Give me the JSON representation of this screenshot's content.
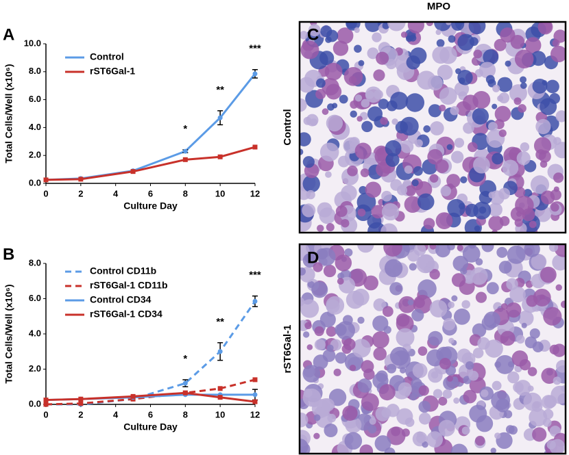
{
  "labels": {
    "column_title": "MPO",
    "row_top": "Control",
    "row_bottom": "rST6Gal-1",
    "panel_c": "C",
    "panel_d": "D"
  },
  "chart_data": [
    {
      "type": "line",
      "panel": "A",
      "xlabel": "Culture Day",
      "ylabel": "Total Cells/Well (x10⁶)",
      "x": [
        0,
        2,
        5,
        8,
        10,
        12
      ],
      "xlim": [
        0,
        12
      ],
      "xticks": [
        0,
        2,
        4,
        6,
        8,
        10,
        12
      ],
      "ylim": [
        0,
        10
      ],
      "yticks": [
        {
          "value": 0,
          "label": "0.0"
        },
        {
          "value": 2,
          "label": "2.0"
        },
        {
          "value": 4,
          "label": "4.0"
        },
        {
          "value": 6,
          "label": "6.0"
        },
        {
          "value": 8,
          "label": "8.0"
        },
        {
          "value": 10,
          "label": "10.0"
        }
      ],
      "series": [
        {
          "name": "Control",
          "color": "#5b9be6",
          "dash": false,
          "marker": "circle",
          "values": [
            0.25,
            0.35,
            0.9,
            2.3,
            4.7,
            7.85
          ],
          "errors": [
            null,
            null,
            null,
            0.1,
            0.5,
            0.3
          ]
        },
        {
          "name": "rST6Gal-1",
          "color": "#c8312a",
          "dash": false,
          "marker": "square",
          "values": [
            0.25,
            0.3,
            0.85,
            1.7,
            1.9,
            2.6
          ],
          "errors": [
            null,
            null,
            null,
            null,
            null,
            null
          ]
        }
      ],
      "annotations": [
        {
          "text": "*",
          "x": 8
        },
        {
          "text": "**",
          "x": 10
        },
        {
          "text": "***",
          "x": 12
        }
      ]
    },
    {
      "type": "line",
      "panel": "B",
      "xlabel": "Culture Day",
      "ylabel": "Total Cells/Well (x10⁶)",
      "x": [
        0,
        2,
        5,
        8,
        10,
        12
      ],
      "xlim": [
        0,
        12
      ],
      "xticks": [
        0,
        2,
        4,
        6,
        8,
        10,
        12
      ],
      "ylim": [
        0,
        8
      ],
      "yticks": [
        {
          "value": 0,
          "label": "0.0"
        },
        {
          "value": 2,
          "label": "2.0"
        },
        {
          "value": 4,
          "label": "4.0"
        },
        {
          "value": 6,
          "label": "6.0"
        },
        {
          "value": 8,
          "label": "8.0"
        }
      ],
      "series": [
        {
          "name": "Control CD11b",
          "color": "#5b9be6",
          "dash": true,
          "marker": "circle",
          "values": [
            0,
            0,
            0.3,
            1.2,
            3.0,
            5.85
          ],
          "errors": [
            null,
            null,
            null,
            0.2,
            0.5,
            0.3
          ]
        },
        {
          "name": "rST6Gal-1 CD11b",
          "color": "#c8312a",
          "dash": true,
          "marker": "square",
          "values": [
            0,
            0.05,
            0.3,
            0.65,
            0.9,
            1.4
          ],
          "errors": [
            null,
            null,
            null,
            null,
            null,
            null
          ]
        },
        {
          "name": "Control CD34",
          "color": "#5b9be6",
          "dash": false,
          "marker": "circle",
          "values": [
            0.25,
            0.3,
            0.4,
            0.55,
            0.55,
            0.55
          ],
          "errors": [
            null,
            null,
            null,
            null,
            null,
            0.3
          ]
        },
        {
          "name": "rST6Gal-1 CD34",
          "color": "#c8312a",
          "dash": false,
          "marker": "square",
          "values": [
            0.25,
            0.3,
            0.45,
            0.65,
            0.4,
            0.15
          ],
          "errors": [
            null,
            null,
            null,
            null,
            null,
            null
          ]
        }
      ],
      "annotations": [
        {
          "text": "*",
          "x": 8
        },
        {
          "text": "**",
          "x": 10
        },
        {
          "text": "***",
          "x": 12
        }
      ]
    }
  ]
}
